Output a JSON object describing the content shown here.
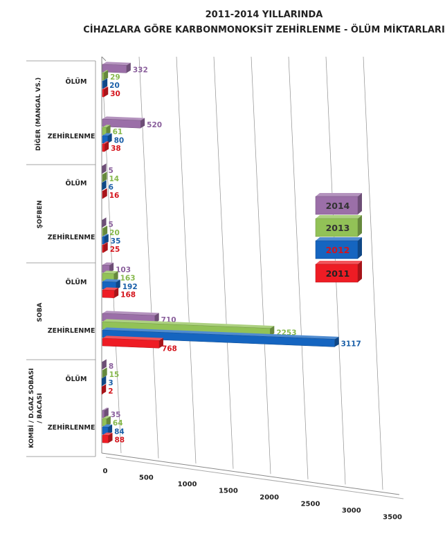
{
  "chart_data": {
    "type": "bar",
    "orientation": "horizontal",
    "title": "2011-2014 YILLARINDA",
    "subtitle": "CİHAZLARA GÖRE KARBONMONOKSİT ZEHİRLENME - ÖLÜM MİKTARLARI",
    "groups": [
      {
        "name": "DİĞER (MANGAL VS.)",
        "rows": [
          "ÖLÜM",
          "ZEHİRLENME"
        ]
      },
      {
        "name": "ŞOFBEN",
        "rows": [
          "ÖLÜM",
          "ZEHİRLENME"
        ]
      },
      {
        "name": "SOBA",
        "rows": [
          "ÖLÜM",
          "ZEHİRLENME"
        ]
      },
      {
        "name": "KOMBİ / D.GAZ SOBASI / BACASI",
        "rows": [
          "ÖLÜM",
          "ZEHİRLENME"
        ]
      }
    ],
    "series": [
      {
        "name": "2014",
        "color": "#9b6fa8",
        "values": [
          [
            332,
            520
          ],
          [
            5,
            5
          ],
          [
            103,
            710
          ],
          [
            8,
            35
          ]
        ]
      },
      {
        "name": "2013",
        "color": "#92c257",
        "values": [
          [
            29,
            61
          ],
          [
            14,
            20
          ],
          [
            163,
            2253
          ],
          [
            15,
            64
          ]
        ]
      },
      {
        "name": "2012",
        "color": "#1565c0",
        "values": [
          [
            20,
            80
          ],
          [
            6,
            35
          ],
          [
            192,
            3117
          ],
          [
            3,
            84
          ]
        ]
      },
      {
        "name": "2011",
        "color": "#ee1c24",
        "values": [
          [
            30,
            38
          ],
          [
            16,
            25
          ],
          [
            168,
            768
          ],
          [
            2,
            88
          ]
        ]
      }
    ],
    "label_colors": {
      "2014": "#8a5f9c",
      "2013": "#86b84c",
      "2012": "#1a5fa8",
      "2011": "#d4141c"
    },
    "x_ticks": [
      0,
      500,
      1000,
      1500,
      2000,
      2500,
      3000,
      3500
    ],
    "xlim": [
      0,
      3500
    ],
    "grid": true,
    "legend_position": "right"
  }
}
